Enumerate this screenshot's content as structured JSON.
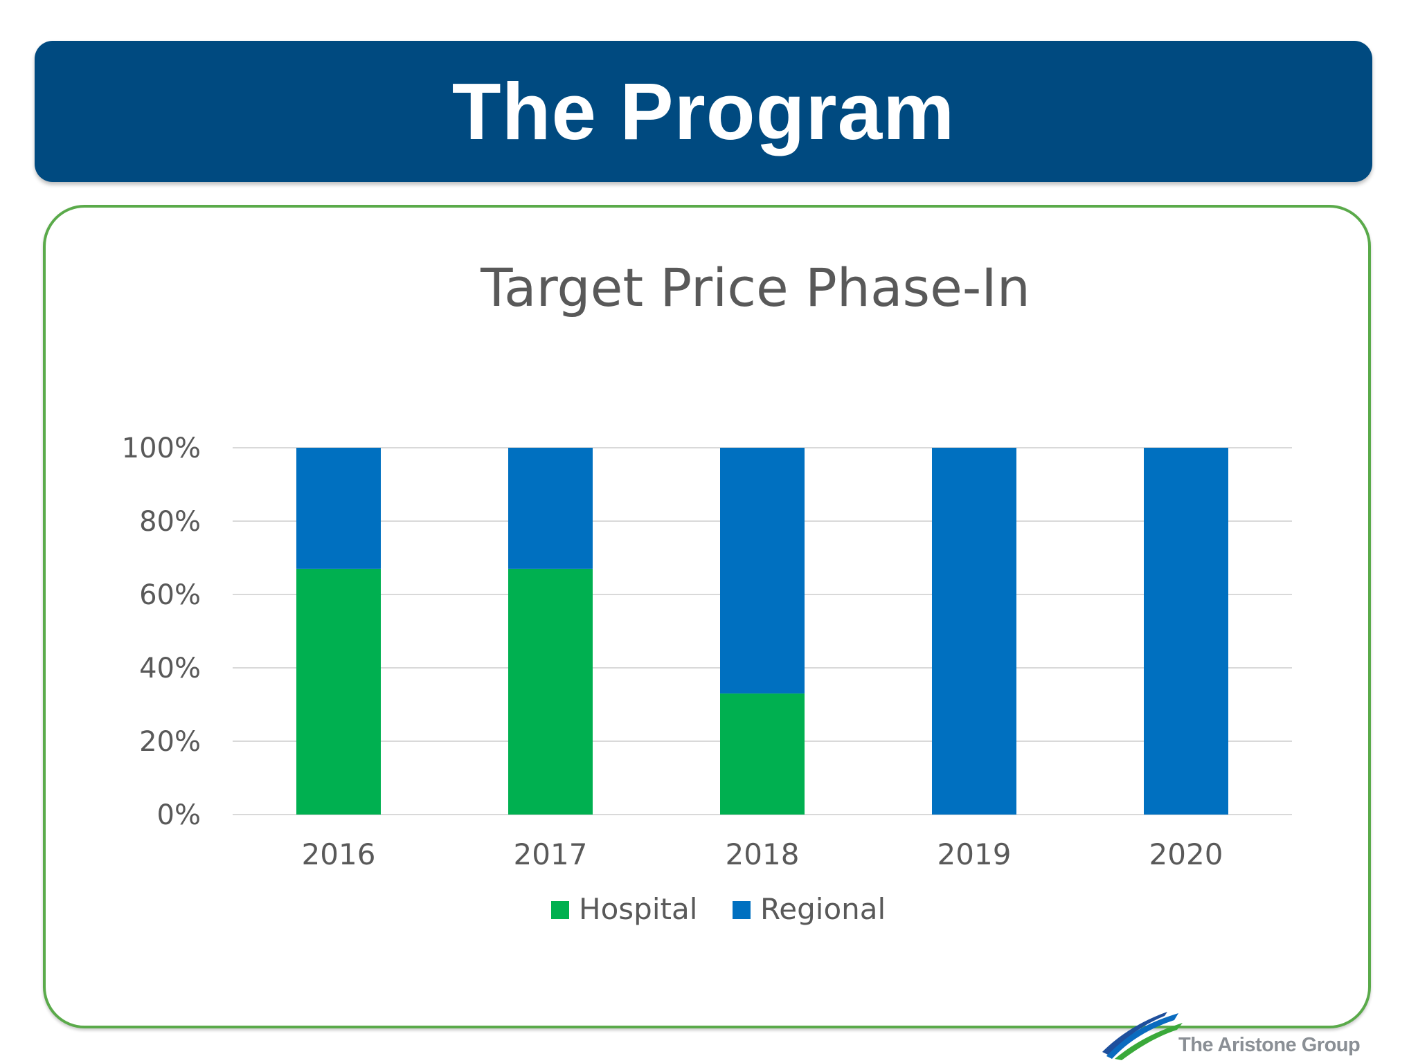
{
  "page": {
    "title": "The Program"
  },
  "brand": {
    "name": "The Aristone Group",
    "mark_colors": [
      "#0a6bbf",
      "#3aa93a",
      "#1e4f9c"
    ]
  },
  "colors": {
    "banner": "#004a80",
    "frame": "#5aaa4a",
    "hospital": "#00b050",
    "regional": "#0070c0"
  },
  "chart_data": {
    "type": "bar",
    "stacked": true,
    "title": "Target Price Phase-In",
    "categories": [
      "2016",
      "2017",
      "2018",
      "2019",
      "2020"
    ],
    "series": [
      {
        "name": "Hospital",
        "color": "#00b050",
        "values": [
          67,
          67,
          33,
          0,
          0
        ]
      },
      {
        "name": "Regional",
        "color": "#0070c0",
        "values": [
          33,
          33,
          67,
          100,
          100
        ]
      }
    ],
    "ylim": [
      0,
      100
    ],
    "yticks": [
      0,
      20,
      40,
      60,
      80,
      100
    ],
    "ytick_labels": [
      "0%",
      "20%",
      "40%",
      "60%",
      "80%",
      "100%"
    ],
    "xlabel": "",
    "ylabel": "",
    "grid": true,
    "legend": "bottom"
  }
}
